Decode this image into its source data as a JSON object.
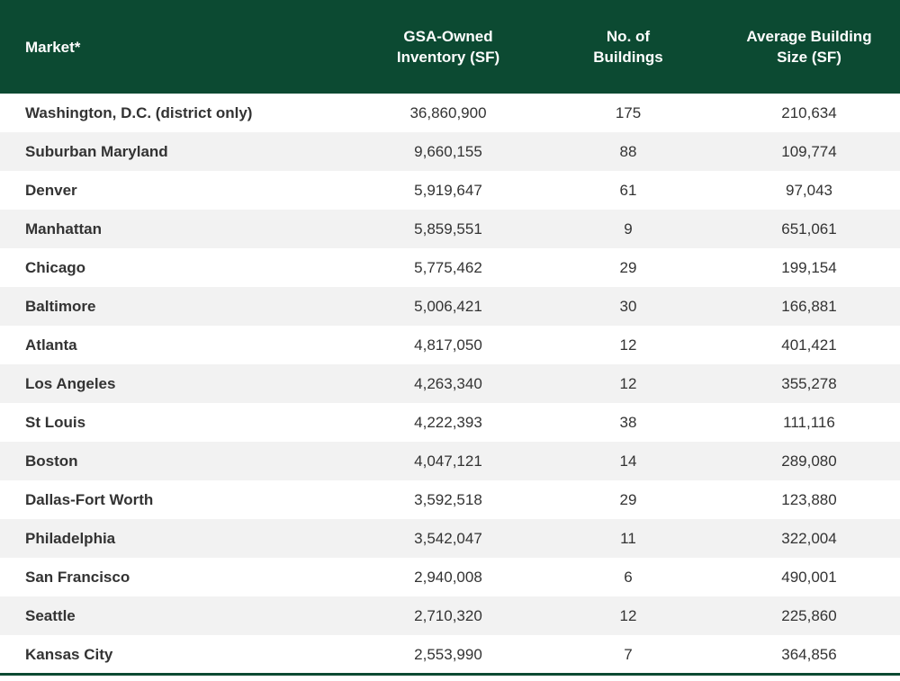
{
  "header_color": "#0c4a32",
  "alt_row_color": "#f2f2f2",
  "chart_data": {
    "type": "table",
    "columns": [
      [
        "Market*"
      ],
      [
        "GSA-Owned",
        "Inventory (SF)"
      ],
      [
        "No. of",
        "Buildings"
      ],
      [
        "Average Building",
        "Size (SF)"
      ]
    ],
    "rows": [
      [
        "Washington, D.C. (district only)",
        "36,860,900",
        "175",
        "210,634"
      ],
      [
        "Suburban Maryland",
        "9,660,155",
        "88",
        "109,774"
      ],
      [
        "Denver",
        "5,919,647",
        "61",
        "97,043"
      ],
      [
        "Manhattan",
        "5,859,551",
        "9",
        "651,061"
      ],
      [
        "Chicago",
        "5,775,462",
        "29",
        "199,154"
      ],
      [
        "Baltimore",
        "5,006,421",
        "30",
        "166,881"
      ],
      [
        "Atlanta",
        "4,817,050",
        "12",
        "401,421"
      ],
      [
        "Los Angeles",
        "4,263,340",
        "12",
        "355,278"
      ],
      [
        "St Louis",
        "4,222,393",
        "38",
        "111,116"
      ],
      [
        "Boston",
        "4,047,121",
        "14",
        "289,080"
      ],
      [
        "Dallas-Fort Worth",
        "3,592,518",
        "29",
        "123,880"
      ],
      [
        "Philadelphia",
        "3,542,047",
        "11",
        "322,004"
      ],
      [
        "San Francisco",
        "2,940,008",
        "6",
        "490,001"
      ],
      [
        "Seattle",
        "2,710,320",
        "12",
        "225,860"
      ],
      [
        "Kansas City",
        "2,553,990",
        "7",
        "364,856"
      ]
    ]
  }
}
